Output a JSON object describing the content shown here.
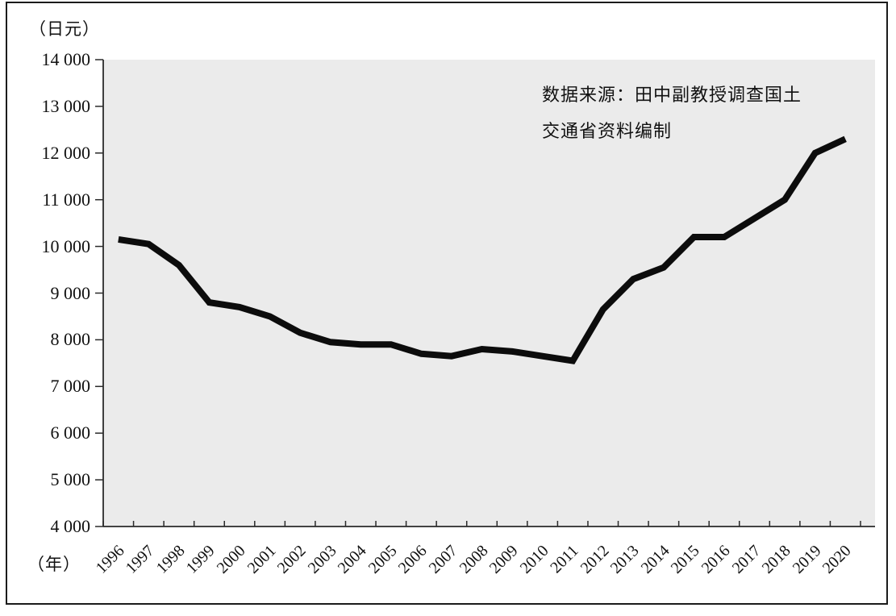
{
  "figure": {
    "y_axis_unit": "（日元）",
    "x_axis_unit": "（年）",
    "source_note_line1": "数据来源：田中副教授调查国土",
    "source_note_line2": "交通省资料编制"
  },
  "chart_data": {
    "type": "line",
    "title": "",
    "x": [
      1996,
      1997,
      1998,
      1999,
      2000,
      2001,
      2002,
      2003,
      2004,
      2005,
      2006,
      2007,
      2008,
      2009,
      2010,
      2011,
      2012,
      2013,
      2014,
      2015,
      2016,
      2017,
      2018,
      2019,
      2020
    ],
    "values": [
      10150,
      10050,
      9600,
      8800,
      8700,
      8500,
      8150,
      7950,
      7900,
      7900,
      7700,
      7650,
      7800,
      7750,
      7650,
      7550,
      8650,
      9300,
      9550,
      10200,
      10200,
      10600,
      11000,
      12000,
      12300
    ],
    "xlabel": "（年）",
    "ylabel": "（日元）",
    "ylim": [
      4000,
      14000
    ],
    "y_tick_interval": 1000,
    "y_tick_labels": [
      "4 000",
      "5 000",
      "6 000",
      "7 000",
      "8 000",
      "9 000",
      "10 000",
      "11 000",
      "12 000",
      "13 000",
      "14 000"
    ],
    "x_tick_labels": [
      "1996",
      "1997",
      "1998",
      "1999",
      "2000",
      "2001",
      "2002",
      "2003",
      "2004",
      "2005",
      "2006",
      "2007",
      "2008",
      "2009",
      "2010",
      "2011",
      "2012",
      "2013",
      "2014",
      "2015",
      "2016",
      "2017",
      "2018",
      "2019",
      "2020"
    ],
    "grid": false,
    "legend": "none",
    "annotation": "数据来源：田中副教授调查国土交通省资料编制",
    "line_color": "#0c0c0c",
    "axis_color": "#2a2a2a",
    "plot_bg_color": "#ebebeb"
  }
}
